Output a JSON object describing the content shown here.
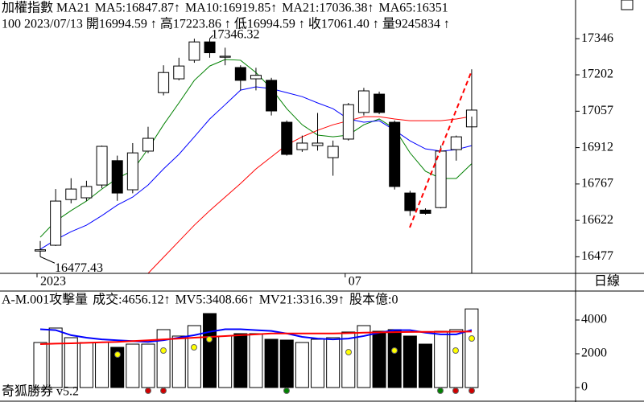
{
  "chart_data": [
    {
      "type": "candlestick",
      "title": "加權指數 MA21",
      "info_line": "100 2023/07/13 開16994.59 ↑ 高17223.86 ↑ 低16994.59 ↑ 收17061.40 ↑ 量9245834 ↑",
      "period": "日線",
      "categories": [
        "2023",
        null,
        null,
        null,
        null,
        null,
        null,
        null,
        null,
        null,
        null,
        null,
        null,
        null,
        null,
        null,
        null,
        null,
        null,
        null,
        "07",
        null,
        null,
        null,
        null,
        null,
        null,
        null,
        null
      ],
      "open": [
        16500,
        16523,
        16705,
        16712,
        16763,
        16860,
        16744,
        16898,
        17131,
        17186,
        17260,
        17333,
        17272,
        17231,
        17186,
        17180,
        17013,
        16904,
        16920,
        16872,
        16946,
        17052,
        17125,
        17013,
        16731,
        16663,
        16673,
        16904,
        16994.59
      ],
      "high": [
        16540,
        16747,
        16790,
        16780,
        16920,
        16880,
        16930,
        16995,
        17240,
        17270,
        17346,
        17346.32,
        17310,
        17240,
        17230,
        17190,
        17020,
        16960,
        17050,
        16940,
        17090,
        17150,
        17135,
        17020,
        16740,
        16670,
        16920,
        16960,
        17223.86
      ],
      "low": [
        16477.43,
        16520,
        16690,
        16700,
        16750,
        16700,
        16730,
        16890,
        17120,
        17180,
        17250,
        17270,
        17240,
        17140,
        17140,
        17040,
        16880,
        16895,
        16900,
        16800,
        16940,
        17040,
        17045,
        16745,
        16640,
        16645,
        16670,
        16860,
        16994.59
      ],
      "close": [
        16505,
        16699,
        16747,
        16757,
        16917,
        16731,
        16891,
        16949,
        17211,
        17237,
        17333,
        17290,
        17276,
        17180,
        17200,
        17058,
        16885,
        16930,
        16930,
        16917,
        17083,
        17138,
        17052,
        16757,
        16661,
        16650,
        16898,
        16955,
        17061.4
      ],
      "high_label": "17346.32",
      "low_label": "16477.43",
      "series": [
        {
          "name": "MA5:16847.87↑",
          "color": "#008000",
          "values": [
            16555,
            16619,
            16661,
            16699,
            16747,
            16789,
            16821,
            16907,
            17003,
            17090,
            17180,
            17237,
            17263,
            17260,
            17211,
            17147,
            17067,
            17003,
            16962,
            16955,
            16962,
            17003,
            17026,
            16987,
            16891,
            16818,
            16789,
            16789,
            16847.87
          ]
        },
        {
          "name": "MA10:16919.85↑",
          "color": "#0000ff",
          "values": [
            16507,
            16545,
            16577,
            16603,
            16641,
            16683,
            16715,
            16763,
            16827,
            16885,
            16955,
            17026,
            17083,
            17141,
            17154,
            17147,
            17131,
            17115,
            17090,
            17067,
            17026,
            17013,
            17019,
            16981,
            16939,
            16907,
            16898,
            16904,
            16919.85
          ]
        },
        {
          "name": "MA21:17036.38↑",
          "color": "#ff0000",
          "values": [
            null,
            null,
            null,
            null,
            null,
            null,
            null,
            16411,
            16475,
            16539,
            16603,
            16661,
            16715,
            16769,
            16827,
            16875,
            16923,
            16955,
            16981,
            17003,
            17019,
            17035,
            17035,
            17026,
            17019,
            17019,
            17019,
            17026,
            17036.38
          ]
        }
      ],
      "legend_extra": [
        {
          "text": "MA65:16351",
          "color": "#ff00ff"
        }
      ],
      "up_color": "#ffffff",
      "down_color": "#000000",
      "ylim": [
        16411,
        17500
      ],
      "yticks": [
        16477,
        16622,
        16767,
        16912,
        17057,
        17202,
        17346
      ]
    },
    {
      "type": "bar",
      "title": "A-M.001攻擊量",
      "label": "成交:4656.12↑",
      "label_color": "#008000",
      "values": [
        2667,
        3524,
        2952,
        2667,
        2667,
        2381,
        2571,
        2571,
        3429,
        3048,
        3667,
        4381,
        3048,
        3190,
        3190,
        2857,
        2810,
        2667,
        2857,
        2952,
        3286,
        3667,
        3333,
        3429,
        3048,
        2571,
        3333,
        3429,
        4656.12
      ],
      "series": [
        {
          "name": "MV5:3408.66↑",
          "color": "#0000ff",
          "values": [
            3450,
            3400,
            3100,
            2950,
            2850,
            2800,
            2750,
            2700,
            2800,
            2950,
            3100,
            3300,
            3450,
            3450,
            3400,
            3350,
            3200,
            3000,
            2900,
            2850,
            2900,
            3050,
            3250,
            3400,
            3400,
            3250,
            3150,
            3150,
            3408.66
          ]
        },
        {
          "name": "MV21:3316.39↑",
          "color": "#ff0000",
          "values": [
            2571,
            2600,
            2620,
            2650,
            2680,
            2700,
            2750,
            2800,
            2850,
            2900,
            2950,
            3000,
            3050,
            3100,
            3150,
            3200,
            3200,
            3200,
            3200,
            3200,
            3220,
            3250,
            3270,
            3280,
            3290,
            3300,
            3300,
            3310,
            3316.39
          ]
        }
      ],
      "legend_extra": [
        {
          "text": "股本億:0",
          "color": "#ff00ff"
        }
      ],
      "ylim": [
        -762,
        5714
      ],
      "yticks": [
        0,
        2000,
        4000
      ]
    }
  ],
  "footer": "奇狐勝券 v5.2"
}
